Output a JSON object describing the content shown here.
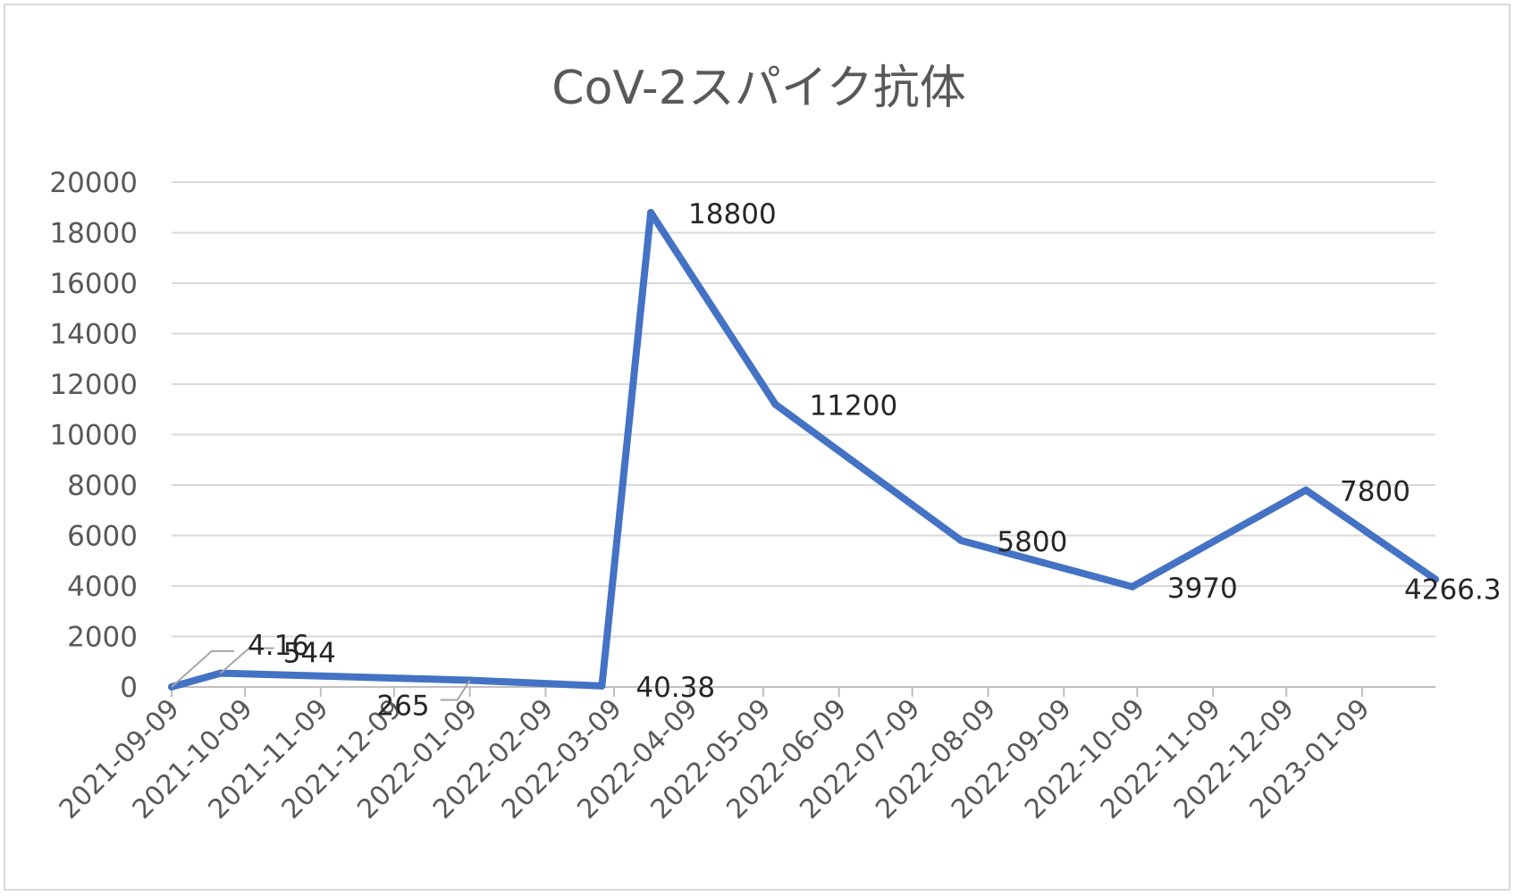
{
  "chart_data": {
    "type": "line",
    "title": "CoV-2スパイク抗体",
    "xlabel": "",
    "ylabel": "",
    "ylim": [
      0,
      20000
    ],
    "yticks": [
      "0",
      "2000",
      "4000",
      "6000",
      "8000",
      "10000",
      "12000",
      "14000",
      "16000",
      "18000",
      "20000"
    ],
    "x_tick_labels": [
      "2021-09-09",
      "2021-10-09",
      "2021-11-09",
      "2021-12-09",
      "2022-01-09",
      "2022-02-09",
      "2022-03-09",
      "2022-04-09",
      "2022-05-09",
      "2022-06-09",
      "2022-07-09",
      "2022-08-09",
      "2022-09-09",
      "2022-10-09",
      "2022-11-09",
      "2022-12-09",
      "2023-01-09"
    ],
    "x_range": [
      "2021-09-09",
      "2023-02-08"
    ],
    "grid": true,
    "legend": "none",
    "series_color": "#4472C4",
    "series": [
      {
        "points": [
          {
            "x": "2021-09-09",
            "y": 4.16,
            "label": "4.16"
          },
          {
            "x": "2021-09-29",
            "y": 544,
            "label": "544"
          },
          {
            "x": "2022-01-09",
            "y": 265,
            "label": "265"
          },
          {
            "x": "2022-03-04",
            "y": 40.38,
            "label": "40.38"
          },
          {
            "x": "2022-03-24",
            "y": 18800,
            "label": "18800"
          },
          {
            "x": "2022-05-14",
            "y": 11200,
            "label": "11200"
          },
          {
            "x": "2022-07-29",
            "y": 5800,
            "label": "5800"
          },
          {
            "x": "2022-10-07",
            "y": 3970,
            "label": "3970"
          },
          {
            "x": "2022-12-17",
            "y": 7800,
            "label": "7800"
          },
          {
            "x": "2023-02-08",
            "y": 4266.3,
            "label": "4266.3"
          }
        ]
      }
    ]
  }
}
